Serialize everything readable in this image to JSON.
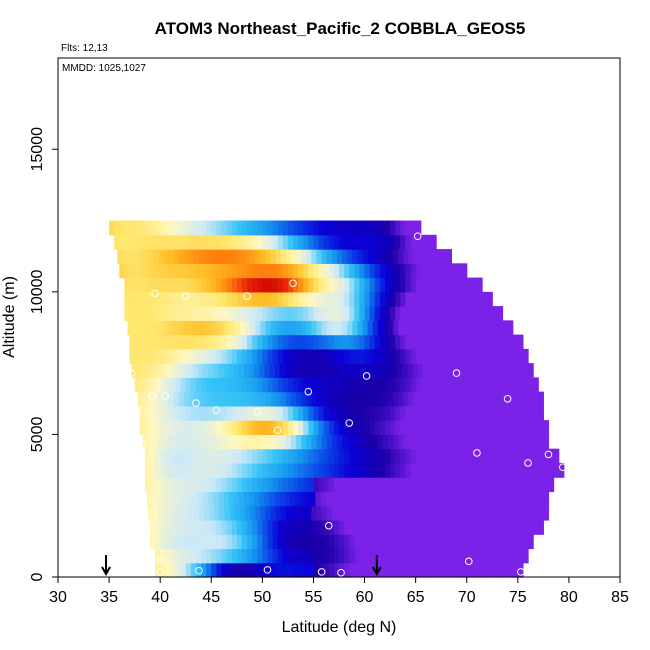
{
  "chart_data": {
    "type": "heatmap",
    "title": "ATOM3 Northeast_Pacific_2 COBBLA_GEOS5",
    "annotations": {
      "flights": "Flts: 12,13",
      "dates": "MMDD: 1025,1027"
    },
    "xlabel": "Latitude (deg N)",
    "ylabel": "Altitude (m)",
    "xlim": [
      30,
      85
    ],
    "ylim": [
      0,
      18200
    ],
    "x_ticks": [
      30,
      35,
      40,
      45,
      50,
      55,
      60,
      65,
      70,
      75,
      80,
      85
    ],
    "x_tick_labels": [
      "30",
      "35",
      "40",
      "45",
      "50",
      "55",
      "60",
      "65",
      "70",
      "75",
      "80",
      "85"
    ],
    "y_ticks": [
      0,
      5000,
      10000,
      15000
    ],
    "y_tick_labels": [
      "0",
      "5000",
      "10000",
      "15000"
    ],
    "grid": false,
    "colormap": [
      "#7b22e8",
      "#1a00a8",
      "#0a00d8",
      "#0b47e8",
      "#1596ee",
      "#36c3f8",
      "#cde9f7",
      "#fff7c0",
      "#ffe870",
      "#ffbc24",
      "#ff7e0c",
      "#ee2a06",
      "#c80000"
    ],
    "field": {
      "rows_altitude_m": [
        250,
        750,
        1250,
        1750,
        2250,
        2750,
        3250,
        3750,
        4250,
        4750,
        5250,
        5750,
        6250,
        6750,
        7250,
        7750,
        8250,
        8750,
        9250,
        9750,
        10250,
        10750,
        11250,
        11750,
        12250
      ],
      "left_boundary_lat": [
        39.5,
        39.5,
        39,
        39,
        38.8,
        38.7,
        38.5,
        38.5,
        38.5,
        38.3,
        38,
        38,
        37.8,
        37.5,
        37.2,
        37,
        37,
        36.8,
        36.5,
        36.5,
        36.5,
        36,
        35.8,
        35.5,
        35
      ],
      "right_boundary_lat": [
        75.5,
        76,
        76.5,
        77.5,
        78,
        78,
        78.5,
        79.5,
        79,
        78,
        78,
        77.5,
        77.5,
        77,
        76.5,
        76,
        75.5,
        74.5,
        73.5,
        72.5,
        71.5,
        70,
        68.5,
        67,
        65.5
      ],
      "features": [
        {
          "lat": 51,
          "alt_m": 10300,
          "value": 12,
          "width_lat": 10,
          "depth_m": 1200
        },
        {
          "lat": 46,
          "alt_m": 11300,
          "value": 10,
          "width_lat": 11,
          "depth_m": 900
        },
        {
          "lat": 50,
          "alt_m": 5300,
          "value": 10,
          "width_lat": 8,
          "depth_m": 1000
        },
        {
          "lat": 44,
          "alt_m": 8600,
          "value": 9,
          "width_lat": 9,
          "depth_m": 1000
        },
        {
          "lat": 37.5,
          "alt_m": 9200,
          "value": 8,
          "width_lat": 4,
          "depth_m": 5000
        },
        {
          "lat": 36.5,
          "alt_m": 11700,
          "value": 8,
          "width_lat": 3,
          "depth_m": 1200
        },
        {
          "lat": 57,
          "alt_m": 8800,
          "value": 7,
          "width_lat": 6,
          "depth_m": 2600
        },
        {
          "lat": 42,
          "alt_m": 4100,
          "value": 6,
          "width_lat": 6,
          "depth_m": 2000
        },
        {
          "lat": 43,
          "alt_m": 1300,
          "value": 6,
          "width_lat": 7,
          "depth_m": 1400
        },
        {
          "lat": 46,
          "alt_m": 6600,
          "value": 5,
          "width_lat": 9,
          "depth_m": 1600
        },
        {
          "lat": 55,
          "alt_m": 7500,
          "value": 1,
          "width_lat": 8,
          "depth_m": 1400
        },
        {
          "lat": 60,
          "alt_m": 6300,
          "value": 1,
          "width_lat": 8,
          "depth_m": 1800
        },
        {
          "lat": 54,
          "alt_m": 1300,
          "value": 1,
          "width_lat": 6,
          "depth_m": 1800
        },
        {
          "lat": 48,
          "alt_m": 300,
          "value": 1,
          "width_lat": 6,
          "depth_m": 500
        },
        {
          "lat": 60,
          "alt_m": 11900,
          "value": 2,
          "width_lat": 6,
          "depth_m": 900
        }
      ]
    },
    "sample_points": [
      [
        65.2,
        11950
      ],
      [
        72,
        10300
      ],
      [
        53,
        10300
      ],
      [
        48.5,
        9850
      ],
      [
        42.5,
        9850
      ],
      [
        39.5,
        9950
      ],
      [
        77.5,
        7450
      ],
      [
        69,
        7150
      ],
      [
        60.2,
        7050
      ],
      [
        37.2,
        7150
      ],
      [
        39.2,
        6350
      ],
      [
        40.5,
        6350
      ],
      [
        74,
        6250
      ],
      [
        54.5,
        6500
      ],
      [
        43.5,
        6100
      ],
      [
        45.5,
        5850
      ],
      [
        49.5,
        5800
      ],
      [
        51.5,
        5150
      ],
      [
        58.5,
        5400
      ],
      [
        38.3,
        4650
      ],
      [
        71,
        4350
      ],
      [
        78,
        4300
      ],
      [
        79.4,
        3850
      ],
      [
        76,
        4000
      ],
      [
        56.5,
        1800
      ],
      [
        70.2,
        550
      ],
      [
        40,
        600
      ],
      [
        75.3,
        180
      ],
      [
        40,
        180
      ],
      [
        43.8,
        220
      ],
      [
        50.5,
        250
      ],
      [
        55.8,
        180
      ],
      [
        57.7,
        150
      ]
    ],
    "markers": [
      {
        "type": "arrow-down",
        "lat": 34.7
      },
      {
        "type": "arrow-down",
        "lat": 61.2
      }
    ]
  }
}
